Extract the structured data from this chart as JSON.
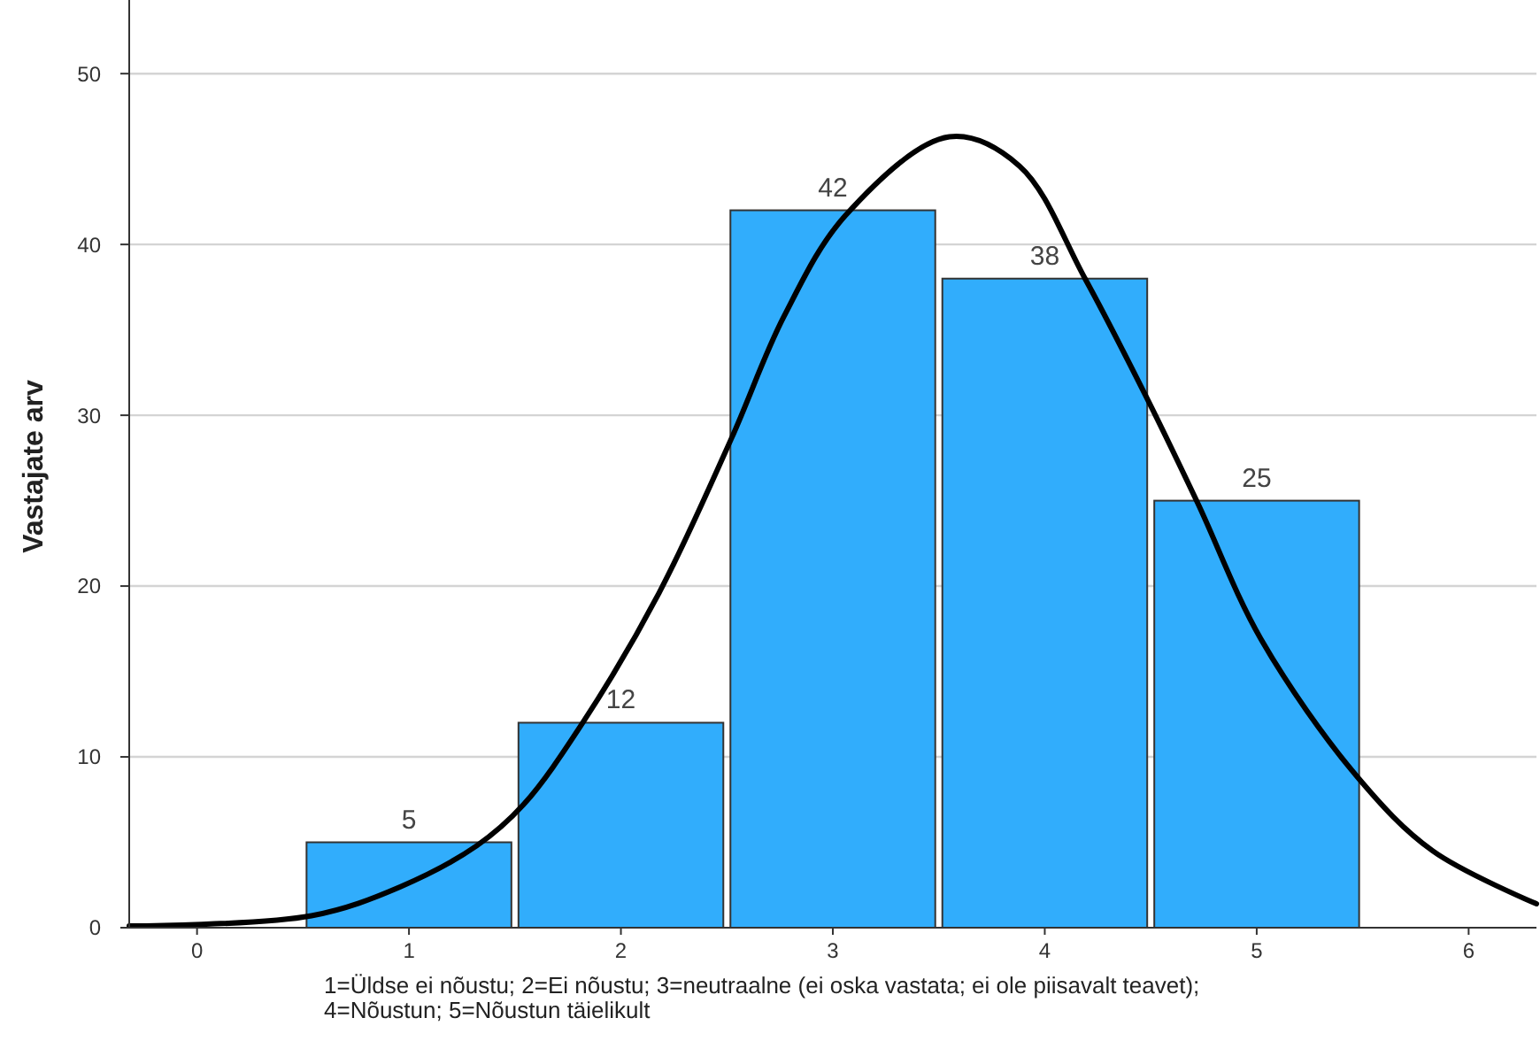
{
  "chart_data": {
    "type": "histogram",
    "ylabel": "Vastajate arv",
    "bins": [
      0.5,
      1.5,
      2.5,
      3.5,
      4.5,
      5.5
    ],
    "values": [
      5,
      12,
      42,
      38,
      25
    ],
    "color": "#31adfc",
    "value_labels": [
      "5",
      "12",
      "42",
      "38",
      "25"
    ],
    "series": [
      {
        "type": "line",
        "color": "#000000",
        "x": [
          -0.32,
          0.54,
          0.96,
          1.32,
          1.54,
          1.82,
          2.18,
          2.52,
          2.77,
          3.06,
          3.55,
          3.88,
          4.19,
          4.49,
          4.72,
          5.02,
          5.47,
          5.83,
          6.32
        ],
        "values": [
          0.1,
          0.7,
          2.4,
          4.8,
          7.2,
          12.0,
          19.6,
          28.6,
          35.8,
          41.7,
          46.3,
          44.6,
          38.0,
          30.8,
          24.9,
          16.9,
          8.9,
          4.5,
          1.4
        ]
      }
    ],
    "xlim": [
      -0.32,
      6.32
    ],
    "xticks": [
      0,
      1,
      2,
      3,
      4,
      5,
      6
    ],
    "ylim": [
      0,
      54
    ],
    "yticks": [
      0,
      10,
      20,
      30,
      40,
      50
    ],
    "grid": "y",
    "marker": "none",
    "line_style": "solid",
    "annotations": [
      "1=Üldse ei nõustu; 2=Ei nõustu; 3=neutraalne (ei oska vastata; ei ole piisavalt teavet);",
      "4=Nõustun; 5=Nõustun täielikult"
    ]
  }
}
